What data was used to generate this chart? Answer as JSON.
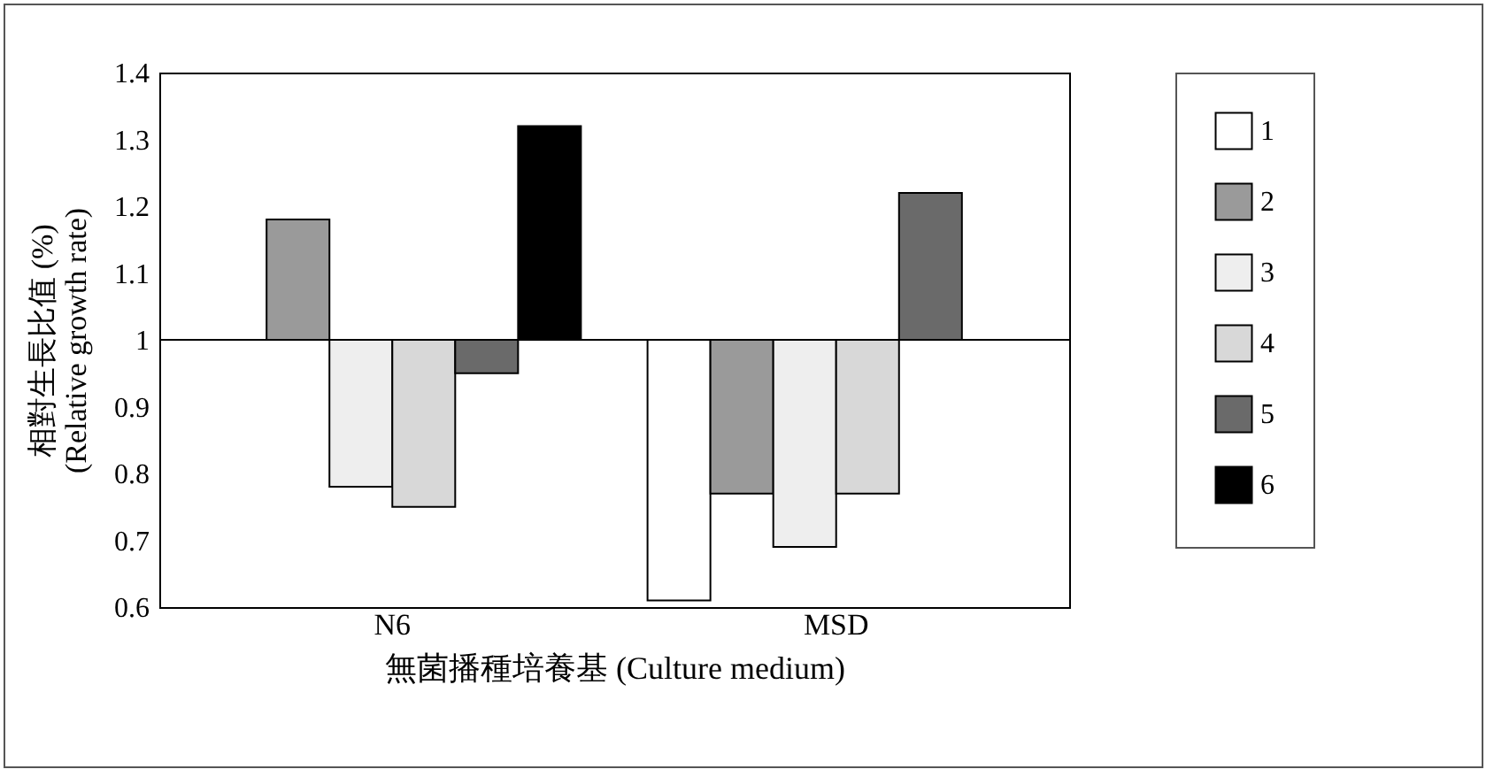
{
  "chart_data": {
    "type": "bar",
    "xlabel": "無菌播種培養基 (Culture medium)",
    "ylabel": "相對生長比值 (%)\n(Relative growth rate)",
    "categories": [
      "N6",
      "MSD"
    ],
    "series": [
      {
        "name": "1",
        "color": "#ffffff",
        "base": [
          null,
          1
        ],
        "values": [
          null,
          -0.39
        ]
      },
      {
        "name": "2",
        "color": "#9a9a9a",
        "base": [
          1,
          1
        ],
        "values": [
          0.18,
          -0.23
        ]
      },
      {
        "name": "3",
        "color": "#eeeeee",
        "base": [
          1,
          1
        ],
        "values": [
          -0.22,
          -0.31
        ]
      },
      {
        "name": "4",
        "color": "#d8d8d8",
        "base": [
          1,
          1
        ],
        "values": [
          -0.25,
          -0.23
        ]
      },
      {
        "name": "5",
        "color": "#6a6a6a",
        "base": [
          1,
          1
        ],
        "values": [
          -0.05,
          0.22
        ]
      },
      {
        "name": "6",
        "color": "#000000",
        "base": [
          1,
          null
        ],
        "values": [
          0.32,
          null
        ]
      }
    ],
    "ylim": [
      0.6,
      1.4
    ],
    "yticks": [
      0.6,
      0.7,
      0.8,
      0.9,
      1,
      1.1,
      1.2,
      1.3,
      1.4
    ],
    "ref_lines": [
      {
        "axis": "y",
        "value": 1
      }
    ],
    "grid": false,
    "legend": "right"
  }
}
